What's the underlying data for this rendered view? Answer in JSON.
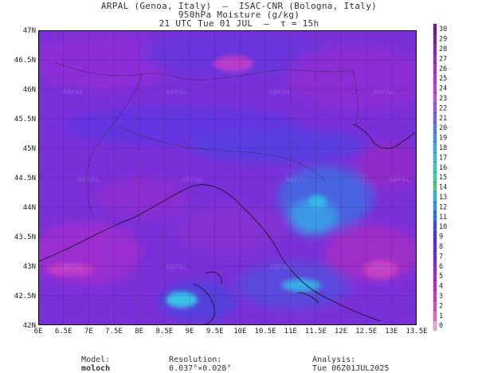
{
  "header": {
    "line1": "ARPAL (Genoa, Italy)  –  ISAC-CNR (Bologna, Italy)",
    "line2": "950hPa Moisture (g/kg)",
    "line3": "21 UTC Tue 01 JUL  –  τ = 15h"
  },
  "map": {
    "lat_labels": [
      "47N",
      "46.5N",
      "46N",
      "45.5N",
      "45N",
      "44.5N",
      "44N",
      "43.5N",
      "43N",
      "42.5N",
      "42N"
    ],
    "lon_labels": [
      "6E",
      "6.5E",
      "7E",
      "7.5E",
      "8E",
      "8.5E",
      "9E",
      "9.5E",
      "10E",
      "10.5E",
      "11E",
      "11.5E",
      "12E",
      "12.5E",
      "13E",
      "13.5E"
    ],
    "watermark": "ARPAL"
  },
  "colorbar": {
    "ticks": [
      "30",
      "29",
      "28",
      "27",
      "26",
      "25",
      "24",
      "23",
      "22",
      "21",
      "20",
      "19",
      "18",
      "17",
      "16",
      "15",
      "14",
      "13",
      "12",
      "11",
      "10",
      "9",
      "8",
      "7",
      "6",
      "5",
      "4",
      "3",
      "2",
      "1",
      "0"
    ],
    "colors": [
      "#6a1e88",
      "#7a2496",
      "#8a2aa6",
      "#9a30b4",
      "#a636c0",
      "#b43ccc",
      "#bf46d4",
      "#c850dc",
      "#9a5ee0",
      "#7a6ae4",
      "#5a80e8",
      "#4898ec",
      "#3cb0ee",
      "#34c4e8",
      "#36d0d0",
      "#3ad8b0",
      "#4ad08a",
      "#30b8e0",
      "#2a9ae4",
      "#2a78e4",
      "#3c56dc",
      "#4c3cd8",
      "#5a30d4",
      "#7030d0",
      "#8c2ed0",
      "#a42ecc",
      "#bc30c8",
      "#cc3ac4",
      "#da4cc8",
      "#e46cd0",
      "#f0a8e6"
    ]
  },
  "footer": {
    "model_label": "Model:",
    "model_value": "moloch",
    "resolution_label": "Resolution:",
    "resolution_value": "0.037°×0.028°",
    "analysis_label": "Analysis:",
    "analysis_value": "Tue 06Z01JUL2025"
  }
}
